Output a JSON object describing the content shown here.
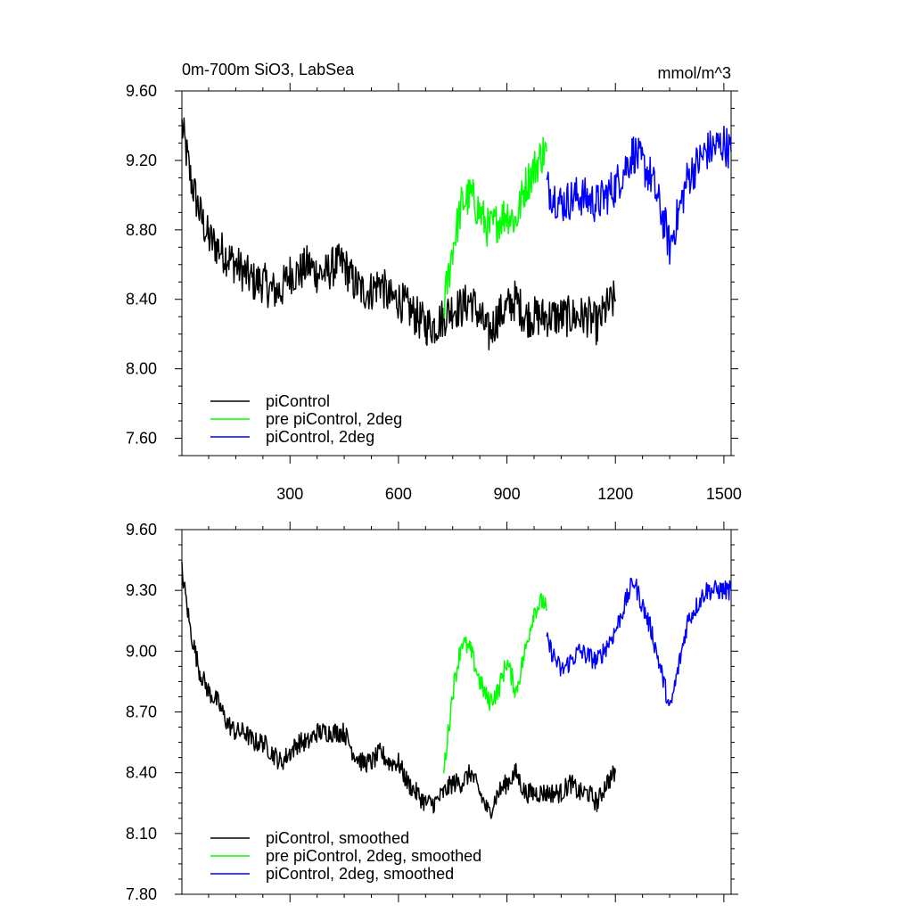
{
  "title_left": "0m-700m SiO3, LabSea",
  "title_right": "mmol/m^3",
  "colors": {
    "black": "#000000",
    "green": "#00ff00",
    "blue": "#0000ff"
  },
  "chart_data": [
    {
      "type": "line",
      "title": "0m-700m SiO3, LabSea",
      "units": "mmol/m^3",
      "xlim": [
        1,
        1520
      ],
      "ylim": [
        7.5,
        9.6
      ],
      "xticks": [
        300,
        600,
        900,
        1200,
        1500
      ],
      "xtick_labels": [
        "300",
        "600",
        "900",
        "1200",
        "1500"
      ],
      "yticks": [
        7.6,
        8.0,
        8.4,
        8.8,
        9.2,
        9.6
      ],
      "ytick_labels": [
        "7.60",
        "8.00",
        "8.40",
        "8.80",
        "9.20",
        "9.60"
      ],
      "legend_position": "bottom-left",
      "series": [
        {
          "name": "piControl",
          "color": "#000000",
          "x": [
            1,
            25,
            50,
            75,
            100,
            125,
            150,
            175,
            200,
            225,
            250,
            275,
            300,
            325,
            350,
            375,
            400,
            425,
            450,
            475,
            500,
            525,
            550,
            575,
            600,
            625,
            650,
            675,
            700,
            725,
            750,
            775,
            800,
            825,
            850,
            875,
            900,
            925,
            950,
            975,
            1000,
            1025,
            1050,
            1075,
            1100,
            1125,
            1150,
            1175,
            1200
          ],
          "y": [
            9.4,
            9.1,
            8.9,
            8.75,
            8.7,
            8.65,
            8.6,
            8.55,
            8.5,
            8.5,
            8.45,
            8.45,
            8.55,
            8.55,
            8.6,
            8.55,
            8.55,
            8.6,
            8.6,
            8.5,
            8.45,
            8.45,
            8.5,
            8.4,
            8.4,
            8.35,
            8.3,
            8.25,
            8.25,
            8.3,
            8.35,
            8.35,
            8.4,
            8.3,
            8.2,
            8.3,
            8.35,
            8.4,
            8.3,
            8.3,
            8.3,
            8.3,
            8.3,
            8.3,
            8.3,
            8.3,
            8.25,
            8.35,
            8.4
          ],
          "noise": 0.12
        },
        {
          "name": "pre piControl, 2deg",
          "color": "#00ff00",
          "x": [
            725,
            750,
            775,
            800,
            825,
            850,
            875,
            900,
            925,
            950,
            975,
            1000,
            1010
          ],
          "y": [
            8.35,
            8.7,
            8.95,
            9.0,
            8.9,
            8.8,
            8.85,
            8.9,
            8.85,
            9.05,
            9.15,
            9.25,
            9.25
          ],
          "noise": 0.12
        },
        {
          "name": "piControl, 2deg",
          "color": "#0000ff",
          "x": [
            1010,
            1050,
            1100,
            1150,
            1200,
            1250,
            1300,
            1340,
            1350,
            1400,
            1450,
            1500,
            1520
          ],
          "y": [
            9.05,
            8.95,
            9.0,
            8.95,
            9.05,
            9.25,
            9.1,
            8.8,
            8.7,
            9.1,
            9.25,
            9.3,
            9.25
          ],
          "noise": 0.12
        }
      ]
    },
    {
      "type": "line",
      "xlim": [
        1,
        1520
      ],
      "ylim": [
        7.8,
        9.6
      ],
      "xticks": [
        300,
        600,
        900,
        1200,
        1500
      ],
      "yticks": [
        7.8,
        8.1,
        8.4,
        8.7,
        9.0,
        9.3,
        9.6
      ],
      "ytick_labels": [
        "7.80",
        "8.10",
        "8.40",
        "8.70",
        "9.00",
        "9.30",
        "9.60"
      ],
      "legend_position": "bottom-left",
      "series": [
        {
          "name": "piControl, smoothed",
          "color": "#000000",
          "x": [
            1,
            25,
            50,
            75,
            100,
            125,
            150,
            175,
            200,
            225,
            250,
            275,
            300,
            325,
            350,
            375,
            400,
            425,
            450,
            475,
            500,
            525,
            550,
            575,
            600,
            625,
            650,
            675,
            700,
            725,
            750,
            775,
            800,
            825,
            850,
            875,
            900,
            925,
            950,
            975,
            1000,
            1025,
            1050,
            1075,
            1100,
            1125,
            1150,
            1175,
            1200
          ],
          "y": [
            9.4,
            9.1,
            8.9,
            8.8,
            8.75,
            8.65,
            8.6,
            8.6,
            8.55,
            8.55,
            8.5,
            8.45,
            8.5,
            8.55,
            8.55,
            8.6,
            8.6,
            8.6,
            8.6,
            8.5,
            8.45,
            8.45,
            8.5,
            8.45,
            8.45,
            8.35,
            8.3,
            8.25,
            8.25,
            8.3,
            8.35,
            8.35,
            8.4,
            8.3,
            8.2,
            8.3,
            8.35,
            8.4,
            8.3,
            8.3,
            8.3,
            8.3,
            8.3,
            8.35,
            8.3,
            8.3,
            8.25,
            8.35,
            8.4
          ],
          "noise": 0.05
        },
        {
          "name": "pre piControl, 2deg, smoothed",
          "color": "#00ff00",
          "x": [
            725,
            750,
            775,
            800,
            825,
            850,
            875,
            900,
            925,
            950,
            975,
            1000,
            1010
          ],
          "y": [
            8.4,
            8.8,
            9.05,
            9.0,
            8.85,
            8.75,
            8.8,
            8.95,
            8.8,
            9.0,
            9.2,
            9.25,
            9.2
          ],
          "noise": 0.05
        },
        {
          "name": "piControl, 2deg, smoothed",
          "color": "#0000ff",
          "x": [
            1010,
            1050,
            1100,
            1150,
            1200,
            1250,
            1300,
            1340,
            1350,
            1400,
            1450,
            1500,
            1520
          ],
          "y": [
            9.05,
            8.9,
            9.0,
            8.95,
            9.1,
            9.35,
            9.1,
            8.8,
            8.7,
            9.15,
            9.3,
            9.3,
            9.3
          ],
          "noise": 0.05
        }
      ]
    }
  ]
}
